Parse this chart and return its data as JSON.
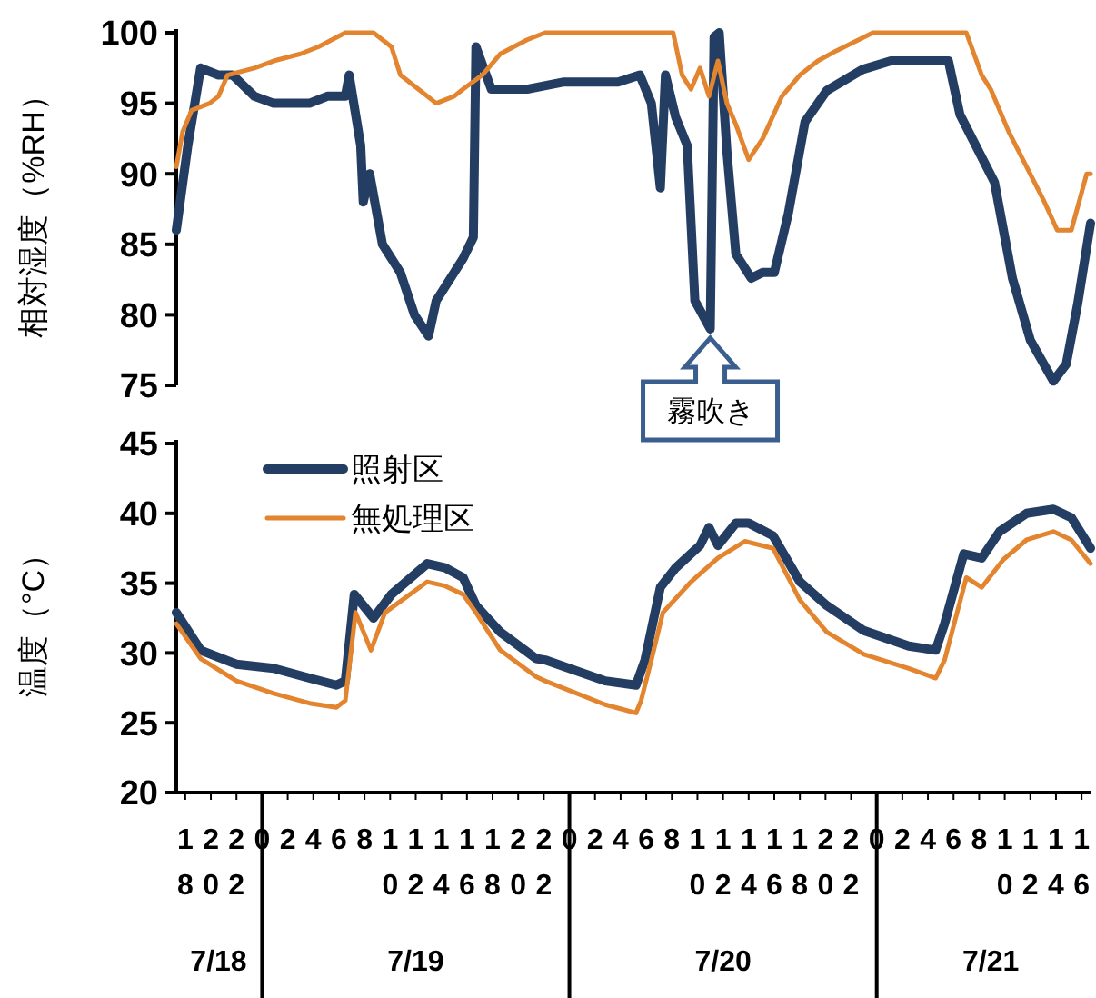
{
  "chart_data": [
    {
      "type": "line",
      "ylabel": "相対湿度（%RH）",
      "xlim": [
        "--07-18T17:18",
        "--07-21T16:42"
      ],
      "ylim": [
        75,
        100
      ],
      "yticks": [
        75,
        80,
        85,
        90,
        95,
        100
      ],
      "grid": false,
      "legend": false,
      "marker": "none",
      "line_style": "solid",
      "annotations": [
        {
          "text": "霧吹き",
          "x": "--07-20T11:00",
          "y": 79
        }
      ],
      "series": [
        {
          "color": "#233e62",
          "x": [
            "--07-18T17:18",
            "--07-18T18:12",
            "--07-18T19:12",
            "--07-18T20:36",
            "--07-18T21:42",
            "--07-18T23:24",
            "--07-19T00:54",
            "--07-19T03:42",
            "--07-19T05:06",
            "--07-19T06:30",
            "--07-19T06:48",
            "--07-19T07:42",
            "--07-19T07:54",
            "--07-19T08:24",
            "--07-19T09:24",
            "--07-19T10:48",
            "--07-19T11:54",
            "--07-19T13:00",
            "--07-19T13:36",
            "--07-19T14:18",
            "--07-19T15:42",
            "--07-19T16:30",
            "--07-19T16:42",
            "--07-19T17:54",
            "--07-19T20:42",
            "--07-19T23:30",
            "--07-20T03:48",
            "--07-20T05:30",
            "--07-20T06:24",
            "--07-20T07:06",
            "--07-20T07:30",
            "--07-20T08:18",
            "--07-20T09:12",
            "--07-20T09:48",
            "--07-20T11:00",
            "--07-20T11:18",
            "--07-20T11:42",
            "--07-20T12:18",
            "--07-20T13:00",
            "--07-20T14:12",
            "--07-20T15:06",
            "--07-20T16:00",
            "--07-20T17:06",
            "--07-20T18:24",
            "--07-20T20:06",
            "--07-20T22:54",
            "--07-21T01:06",
            "--07-21T05:36",
            "--07-21T06:30",
            "--07-21T09:12",
            "--07-21T10:36",
            "--07-21T12:00",
            "--07-21T13:48",
            "--07-21T14:48",
            "--07-21T15:42",
            "--07-21T16:42"
          ],
          "values": [
            86,
            92,
            97.5,
            97,
            97,
            95.5,
            95,
            95,
            95.5,
            95.5,
            97,
            92,
            88,
            90,
            85,
            83,
            80,
            78.5,
            81,
            82,
            84,
            85.5,
            99,
            96,
            96,
            96.5,
            96.5,
            97,
            95,
            89,
            97,
            94,
            92,
            81,
            79,
            99.7,
            100,
            91.6,
            84.3,
            82.6,
            83,
            83,
            87.2,
            93.7,
            95.9,
            97.4,
            98,
            98,
            94.2,
            89.4,
            82.6,
            78.2,
            75.3,
            76.5,
            80.8,
            86.5
          ]
        },
        {
          "color": "#e3842f",
          "x": [
            "--07-18T17:18",
            "--07-18T17:48",
            "--07-18T18:30",
            "--07-18T19:54",
            "--07-18T20:36",
            "--07-18T21:18",
            "--07-18T23:24",
            "--07-19T00:54",
            "--07-19T03:00",
            "--07-19T04:24",
            "--07-19T06:30",
            "--07-19T08:42",
            "--07-19T09:24",
            "--07-19T10:06",
            "--07-19T10:48",
            "--07-19T12:12",
            "--07-19T13:36",
            "--07-19T15:00",
            "--07-19T15:42",
            "--07-19T17:12",
            "--07-19T18:36",
            "--07-19T20:42",
            "--07-19T22:06",
            "--07-20T08:06",
            "--07-20T08:48",
            "--07-20T09:30",
            "--07-20T10:12",
            "--07-20T10:54",
            "--07-20T11:36",
            "--07-20T12:18",
            "--07-20T13:00",
            "--07-20T14:00",
            "--07-20T15:06",
            "--07-20T16:36",
            "--07-20T18:00",
            "--07-20T19:24",
            "--07-20T20:48",
            "--07-20T23:42",
            "--07-21T07:00",
            "--07-21T08:12",
            "--07-21T08:54",
            "--07-21T10:18",
            "--07-21T11:42",
            "--07-21T13:06",
            "--07-21T14:06",
            "--07-21T15:12",
            "--07-21T15:48",
            "--07-21T16:24",
            "--07-21T16:42"
          ],
          "values": [
            90.5,
            93,
            94.5,
            95,
            95.5,
            97,
            97.5,
            98,
            98.5,
            99,
            100,
            100,
            99.5,
            99,
            97,
            96,
            95,
            95.5,
            96,
            97,
            98.5,
            99.5,
            100,
            100,
            97,
            96,
            97.5,
            95.5,
            98,
            95,
            93.5,
            91,
            92.5,
            95.5,
            97,
            98,
            98.7,
            100,
            100,
            97,
            96,
            93,
            90.5,
            88,
            86,
            86,
            88,
            90,
            90
          ]
        }
      ]
    },
    {
      "type": "line",
      "ylabel": "温度（°C）",
      "xlim": [
        "--07-18T17:18",
        "--07-21T16:42"
      ],
      "ylim": [
        20,
        45
      ],
      "yticks": [
        20,
        25,
        30,
        35,
        40,
        45
      ],
      "grid": false,
      "legend": "top left",
      "marker": "none",
      "line_style": "solid",
      "xticks": [
        {
          "value": "--07-18T18:00",
          "label": "18"
        },
        {
          "value": "--07-18T20:00",
          "label": "20"
        },
        {
          "value": "--07-18T22:00",
          "label": "22"
        },
        {
          "value": "--07-19T00:00",
          "label": "0"
        },
        {
          "value": "--07-19T02:00",
          "label": "2"
        },
        {
          "value": "--07-19T04:00",
          "label": "4"
        },
        {
          "value": "--07-19T06:00",
          "label": "6"
        },
        {
          "value": "--07-19T08:00",
          "label": "8"
        },
        {
          "value": "--07-19T10:00",
          "label": "10"
        },
        {
          "value": "--07-19T12:00",
          "label": "12"
        },
        {
          "value": "--07-19T14:00",
          "label": "14"
        },
        {
          "value": "--07-19T16:00",
          "label": "16"
        },
        {
          "value": "--07-19T18:00",
          "label": "18"
        },
        {
          "value": "--07-19T20:00",
          "label": "20"
        },
        {
          "value": "--07-19T22:00",
          "label": "22"
        },
        {
          "value": "--07-20T00:00",
          "label": "0"
        },
        {
          "value": "--07-20T02:00",
          "label": "2"
        },
        {
          "value": "--07-20T04:00",
          "label": "4"
        },
        {
          "value": "--07-20T06:00",
          "label": "6"
        },
        {
          "value": "--07-20T08:00",
          "label": "8"
        },
        {
          "value": "--07-20T10:00",
          "label": "10"
        },
        {
          "value": "--07-20T12:00",
          "label": "12"
        },
        {
          "value": "--07-20T14:00",
          "label": "14"
        },
        {
          "value": "--07-20T16:00",
          "label": "16"
        },
        {
          "value": "--07-20T18:00",
          "label": "18"
        },
        {
          "value": "--07-20T20:00",
          "label": "20"
        },
        {
          "value": "--07-20T22:00",
          "label": "22"
        },
        {
          "value": "--07-21T00:00",
          "label": "0"
        },
        {
          "value": "--07-21T02:00",
          "label": "2"
        },
        {
          "value": "--07-21T04:00",
          "label": "4"
        },
        {
          "value": "--07-21T06:00",
          "label": "6"
        },
        {
          "value": "--07-21T08:00",
          "label": "8"
        },
        {
          "value": "--07-21T10:00",
          "label": "10"
        },
        {
          "value": "--07-21T12:00",
          "label": "12"
        },
        {
          "value": "--07-21T14:00",
          "label": "14"
        },
        {
          "value": "--07-21T16:00",
          "label": "16"
        }
      ],
      "x2lim": [
        "--07-18T17:18",
        "--07-21T16:42"
      ],
      "x2ticks": [
        {
          "value": "--07-18T20:36",
          "label": "7/18"
        },
        {
          "value": "--07-19T12:00",
          "label": "7/19"
        },
        {
          "value": "--07-20T12:00",
          "label": "7/20"
        },
        {
          "value": "--07-21T08:54",
          "label": "7/21"
        }
      ],
      "series": [
        {
          "name": "照射区",
          "color": "#233e62",
          "x": [
            "--07-18T17:18",
            "--07-18T19:12",
            "--07-18T22:00",
            "--07-19T00:54",
            "--07-19T03:42",
            "--07-19T05:48",
            "--07-19T06:30",
            "--07-19T07:12",
            "--07-19T08:42",
            "--07-19T10:06",
            "--07-19T12:54",
            "--07-19T14:18",
            "--07-19T15:42",
            "--07-19T16:42",
            "--07-19T18:36",
            "--07-19T21:24",
            "--07-19T22:06",
            "--07-20T02:48",
            "--07-20T05:12",
            "--07-20T05:54",
            "--07-20T07:06",
            "--07-20T08:18",
            "--07-20T10:12",
            "--07-20T10:54",
            "--07-20T11:36",
            "--07-20T13:00",
            "--07-20T14:00",
            "--07-20T15:54",
            "--07-20T18:00",
            "--07-20T20:06",
            "--07-20T23:00",
            "--07-21T02:30",
            "--07-21T04:36",
            "--07-21T05:18",
            "--07-21T06:48",
            "--07-21T08:12",
            "--07-21T09:36",
            "--07-21T11:42",
            "--07-21T13:48",
            "--07-21T15:12",
            "--07-21T16:42"
          ],
          "values": [
            32.9,
            30.2,
            29.2,
            28.9,
            28.2,
            27.7,
            28,
            34.2,
            32.5,
            34.2,
            36.4,
            36.1,
            35.4,
            33.4,
            31.5,
            29.6,
            29.5,
            28,
            27.7,
            29.5,
            34.7,
            36.1,
            37.7,
            39,
            37.7,
            39.3,
            39.3,
            38.4,
            35.1,
            33.4,
            31.6,
            30.5,
            30.2,
            32.1,
            37.1,
            36.8,
            38.7,
            40,
            40.3,
            39.7,
            37.5
          ]
        },
        {
          "name": "無処理区",
          "color": "#e3842f",
          "x": [
            "--07-18T17:18",
            "--07-18T19:12",
            "--07-18T22:00",
            "--07-19T00:54",
            "--07-19T03:42",
            "--07-19T05:48",
            "--07-19T06:30",
            "--07-19T07:18",
            "--07-19T08:30",
            "--07-19T09:36",
            "--07-19T12:54",
            "--07-19T14:18",
            "--07-19T15:42",
            "--07-19T16:42",
            "--07-19T18:36",
            "--07-19T21:24",
            "--07-19T22:06",
            "--07-20T02:48",
            "--07-20T05:12",
            "--07-20T05:36",
            "--07-20T06:24",
            "--07-20T07:18",
            "--07-20T09:30",
            "--07-20T11:36",
            "--07-20T13:42",
            "--07-20T15:54",
            "--07-20T18:00",
            "--07-20T20:06",
            "--07-20T23:00",
            "--07-21T02:30",
            "--07-21T04:36",
            "--07-21T05:18",
            "--07-21T07:00",
            "--07-21T08:12",
            "--07-21T09:54",
            "--07-21T11:42",
            "--07-21T13:48",
            "--07-21T15:12",
            "--07-21T16:42"
          ],
          "values": [
            32.1,
            29.6,
            28,
            27.1,
            26.4,
            26.1,
            26.6,
            32.9,
            30.2,
            32.9,
            35.1,
            34.8,
            34.2,
            32.9,
            30.2,
            28.3,
            28,
            26.3,
            25.7,
            26.6,
            29.5,
            32.9,
            35.1,
            36.8,
            38,
            37.5,
            33.8,
            31.5,
            29.9,
            28.9,
            28.2,
            29.5,
            35.4,
            34.7,
            36.7,
            38.1,
            38.7,
            38.1,
            36.4
          ]
        }
      ]
    }
  ]
}
